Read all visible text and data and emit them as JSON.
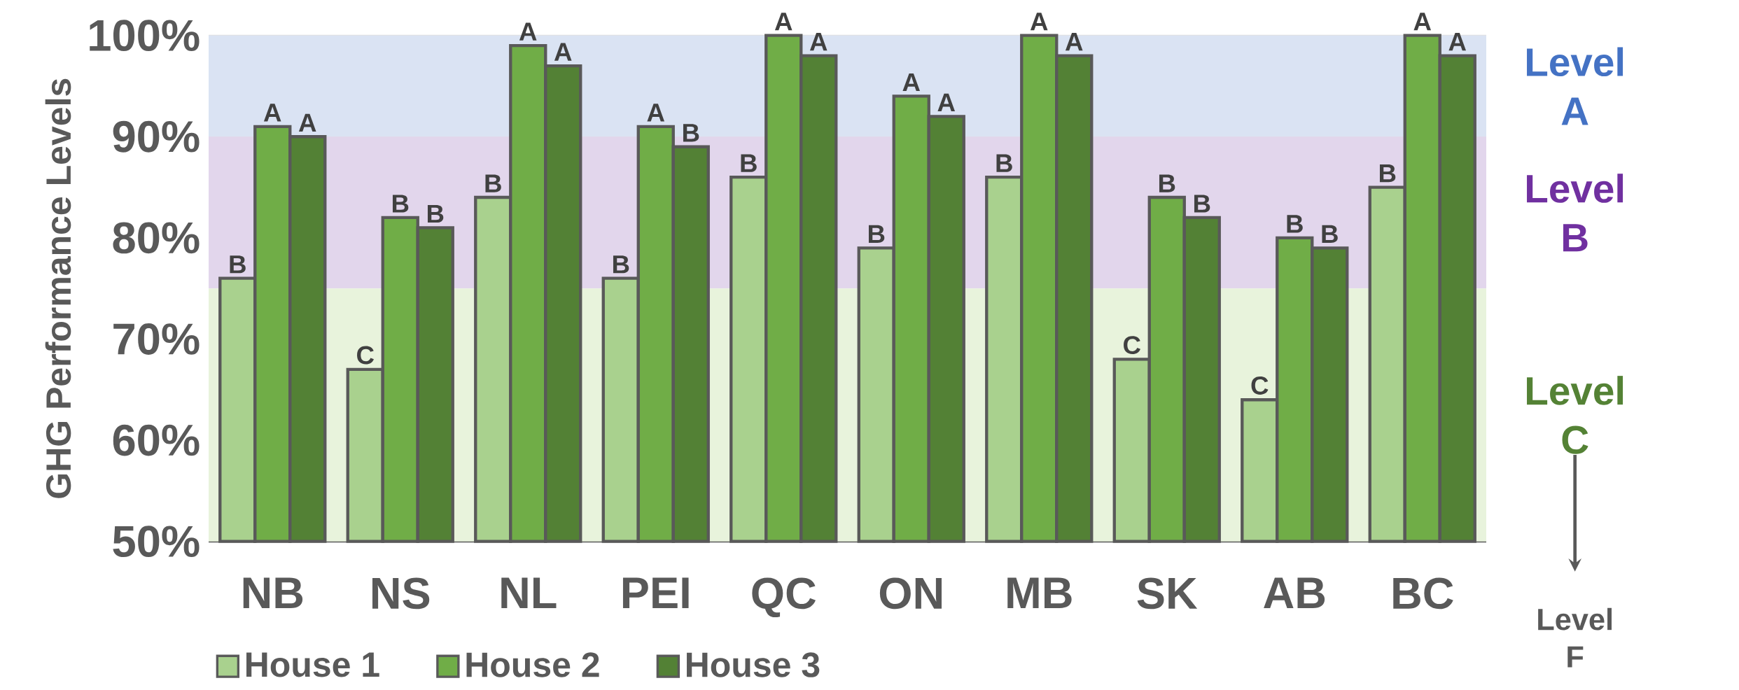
{
  "chart_data": {
    "type": "bar",
    "ylabel": "GHG Performance Levels",
    "categories": [
      "NB",
      "NS",
      "NL",
      "PEI",
      "QC",
      "ON",
      "MB",
      "SK",
      "AB",
      "BC"
    ],
    "series": [
      {
        "name": "House 1",
        "color": "#a9d18e",
        "values": [
          76,
          67,
          84,
          76,
          86,
          79,
          86,
          68,
          64,
          85
        ],
        "value_labels": [
          "B",
          "C",
          "B",
          "B",
          "B",
          "B",
          "B",
          "C",
          "C",
          "B"
        ]
      },
      {
        "name": "House 2",
        "color": "#70ad47",
        "values": [
          91,
          82,
          99,
          91,
          100,
          94,
          100,
          84,
          80,
          100
        ],
        "value_labels": [
          "A",
          "B",
          "A",
          "A",
          "A",
          "A",
          "A",
          "B",
          "B",
          "A"
        ]
      },
      {
        "name": "House 3",
        "color": "#538135",
        "values": [
          90,
          81,
          97,
          89,
          98,
          92,
          98,
          82,
          79,
          98
        ],
        "value_labels": [
          "A",
          "B",
          "A",
          "B",
          "A",
          "A",
          "A",
          "B",
          "B",
          "A"
        ]
      }
    ],
    "ylim": [
      50,
      100
    ],
    "yticks": [
      {
        "value": 50,
        "label": "50%"
      },
      {
        "value": 60,
        "label": "60%"
      },
      {
        "value": 70,
        "label": "70%"
      },
      {
        "value": 80,
        "label": "80%"
      },
      {
        "value": 90,
        "label": "90%"
      },
      {
        "value": 100,
        "label": "100%"
      }
    ],
    "grid": "y",
    "legend": "bottom left",
    "bands": [
      {
        "axis": "y",
        "from": 90,
        "to": 100,
        "label": "Level A",
        "color": "#dae3f3"
      },
      {
        "axis": "y",
        "from": 75,
        "to": 90,
        "label": "Level B",
        "color": "#e2d6ec"
      },
      {
        "axis": "y",
        "from": 50,
        "to": 75,
        "label": "Level C",
        "color": "#e8f3dc"
      }
    ],
    "annotations": [
      "Level F"
    ]
  }
}
